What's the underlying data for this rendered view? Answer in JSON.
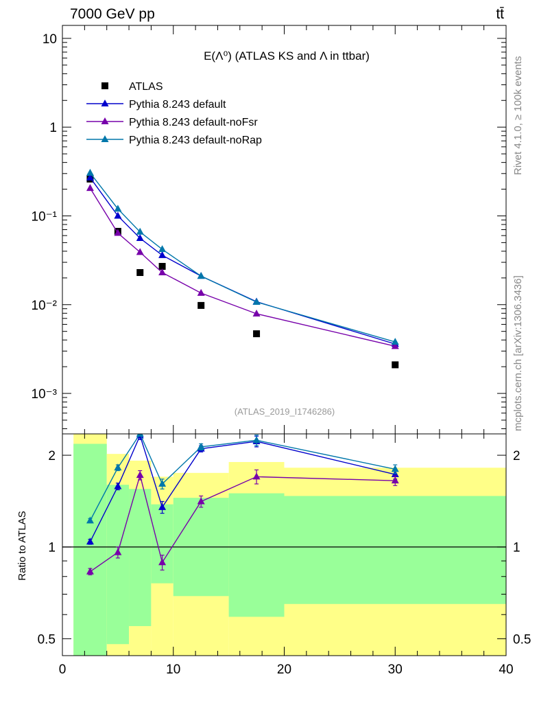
{
  "header": {
    "energy_label": "7000 GeV pp",
    "process_label": "tt̄"
  },
  "side_labels": {
    "rivet": "Rivet 4.1.0, ≥ 100k events",
    "mcplots": "mcplots.cern.ch [arXiv:1306.3436]"
  },
  "chart_data": [
    {
      "type": "scatter",
      "panel": "main",
      "title": "E(Λ⁰) (ATLAS KS and Λ in ttbar)",
      "watermark": "(ATLAS_2019_I1746286)",
      "xscale": "linear",
      "yscale": "log",
      "xlim": [
        0,
        40
      ],
      "ylim": [
        0.00035,
        14
      ],
      "yticks": [
        {
          "value": 0.001,
          "label": "10⁻³"
        },
        {
          "value": 0.01,
          "label": "10⁻²"
        },
        {
          "value": 0.1,
          "label": "10⁻¹"
        },
        {
          "value": 1,
          "label": "1"
        },
        {
          "value": 10,
          "label": "10"
        }
      ],
      "legend_position": "top-left",
      "x": [
        2.5,
        5,
        7,
        9,
        12.5,
        17.5,
        30
      ],
      "series": [
        {
          "name": "ATLAS",
          "marker": "square",
          "color": "#000000",
          "line": false,
          "values": [
            0.26,
            0.067,
            0.023,
            0.027,
            0.0098,
            0.0047,
            0.0021
          ]
        },
        {
          "name": "Pythia 8.243 default",
          "marker": "triangle",
          "color": "#0000cc",
          "line": true,
          "values": [
            0.27,
            0.1,
            0.056,
            0.036,
            0.021,
            0.0108,
            0.0036
          ]
        },
        {
          "name": "Pythia 8.243 default-noFsr",
          "marker": "triangle",
          "color": "#7700aa",
          "line": true,
          "values": [
            0.205,
            0.064,
            0.039,
            0.023,
            0.0135,
            0.0079,
            0.0034
          ]
        },
        {
          "name": "Pythia 8.243 default-noRap",
          "marker": "triangle",
          "color": "#0077aa",
          "line": true,
          "values": [
            0.305,
            0.12,
            0.066,
            0.042,
            0.021,
            0.0107,
            0.0038
          ]
        }
      ]
    },
    {
      "type": "line",
      "panel": "ratio",
      "ylabel": "Ratio to ATLAS",
      "xscale": "linear",
      "yscale": "log",
      "xlim": [
        0,
        40
      ],
      "ylim": [
        0.44,
        2.35
      ],
      "xticks": [
        {
          "value": 0,
          "label": "0"
        },
        {
          "value": 10,
          "label": "10"
        },
        {
          "value": 20,
          "label": "20"
        },
        {
          "value": 30,
          "label": "30"
        },
        {
          "value": 40,
          "label": "40"
        }
      ],
      "yticks": [
        {
          "value": 0.5,
          "label": "0.5"
        },
        {
          "value": 1,
          "label": "1"
        },
        {
          "value": 2,
          "label": "2"
        }
      ],
      "reference_line": 1,
      "uncertainty_bands": [
        {
          "xmin": 1,
          "xmax": 4,
          "green": [
            0.4,
            2.18
          ],
          "yellow": [
            0.4,
            3.0
          ]
        },
        {
          "xmin": 4,
          "xmax": 6,
          "green": [
            0.48,
            1.6
          ],
          "yellow": [
            0.4,
            2.02
          ]
        },
        {
          "xmin": 6,
          "xmax": 8,
          "green": [
            0.55,
            1.55
          ],
          "yellow": [
            0.4,
            1.92
          ]
        },
        {
          "xmin": 8,
          "xmax": 10,
          "green": [
            0.76,
            1.38
          ],
          "yellow": [
            0.4,
            1.7
          ]
        },
        {
          "xmin": 10,
          "xmax": 15,
          "green": [
            0.69,
            1.45
          ],
          "yellow": [
            0.4,
            1.75
          ]
        },
        {
          "xmin": 15,
          "xmax": 20,
          "green": [
            0.59,
            1.5
          ],
          "yellow": [
            0.4,
            1.9
          ]
        },
        {
          "xmin": 20,
          "xmax": 40,
          "green": [
            0.65,
            1.47
          ],
          "yellow": [
            0.4,
            1.82
          ]
        }
      ],
      "x": [
        2.5,
        5,
        7,
        9,
        12.5,
        17.5,
        30
      ],
      "series": [
        {
          "name": "Pythia 8.243 default",
          "color": "#0000cc",
          "values": [
            1.04,
            1.58,
            2.32,
            1.35,
            2.1,
            2.22,
            1.73
          ],
          "errors": [
            0.02,
            0.04,
            0.07,
            0.06,
            0.05,
            0.09,
            0.06
          ]
        },
        {
          "name": "Pythia 8.243 default-noFsr",
          "color": "#7700aa",
          "values": [
            0.83,
            0.96,
            1.72,
            0.89,
            1.41,
            1.7,
            1.65
          ],
          "errors": [
            0.02,
            0.04,
            0.06,
            0.05,
            0.06,
            0.09,
            0.06
          ]
        },
        {
          "name": "Pythia 8.243 default-noRap",
          "color": "#0077aa",
          "values": [
            1.22,
            1.82,
            2.5,
            1.61,
            2.13,
            2.24,
            1.8
          ],
          "errors": [
            0.02,
            0.04,
            0.07,
            0.06,
            0.05,
            0.09,
            0.06
          ]
        }
      ]
    }
  ]
}
